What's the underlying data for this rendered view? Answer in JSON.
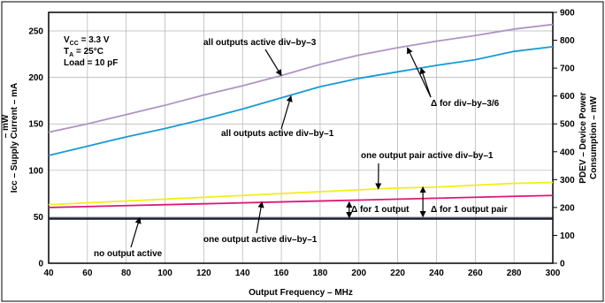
{
  "chart_data": {
    "type": "line",
    "xlabel": "Output Frequency – MHz",
    "ylabel": "Icc – Supply Current – mA",
    "ylabel_fragment": "– mW",
    "y2label_line1": "PDEV – Device Power",
    "y2label_line2": "Consumption – mW",
    "xlim": [
      40,
      300
    ],
    "ylim": [
      0,
      270
    ],
    "y2lim": [
      0,
      900
    ],
    "x_ticks": [
      40,
      60,
      80,
      100,
      120,
      140,
      160,
      180,
      200,
      220,
      240,
      260,
      280,
      300
    ],
    "y_ticks": [
      0,
      50,
      100,
      150,
      200,
      250
    ],
    "y2_ticks": [
      0,
      100,
      200,
      300,
      400,
      500,
      600,
      700,
      800,
      900
    ],
    "grid": true,
    "conditions": {
      "vcc": "V CC = 3.3 V",
      "vcc_parts": [
        "V",
        "CC",
        " = 3.3 V"
      ],
      "ta_parts": [
        "T",
        "A",
        " = 25°C"
      ],
      "load": "Load = 10 pF"
    },
    "series": [
      {
        "key": "div3",
        "color": "#b094c4",
        "points": [
          [
            40,
            141
          ],
          [
            60,
            150
          ],
          [
            80,
            160
          ],
          [
            100,
            170
          ],
          [
            120,
            181
          ],
          [
            140,
            191
          ],
          [
            160,
            202
          ],
          [
            180,
            214
          ],
          [
            200,
            224
          ],
          [
            220,
            232
          ],
          [
            240,
            239
          ],
          [
            260,
            245
          ],
          [
            280,
            252
          ],
          [
            300,
            257
          ]
        ]
      },
      {
        "key": "div1",
        "color": "#1a9ad6",
        "points": [
          [
            40,
            116
          ],
          [
            60,
            126
          ],
          [
            80,
            136
          ],
          [
            100,
            145
          ],
          [
            120,
            155
          ],
          [
            140,
            166
          ],
          [
            160,
            178
          ],
          [
            180,
            190
          ],
          [
            200,
            199
          ],
          [
            220,
            206
          ],
          [
            240,
            213
          ],
          [
            260,
            219
          ],
          [
            280,
            228
          ],
          [
            300,
            233
          ]
        ]
      },
      {
        "key": "pair",
        "color": "#f2ee1a",
        "points": [
          [
            40,
            63
          ],
          [
            60,
            65
          ],
          [
            80,
            67
          ],
          [
            100,
            69
          ],
          [
            120,
            71
          ],
          [
            140,
            73
          ],
          [
            160,
            75
          ],
          [
            180,
            77
          ],
          [
            200,
            79
          ],
          [
            220,
            81
          ],
          [
            240,
            82
          ],
          [
            260,
            84
          ],
          [
            280,
            86
          ],
          [
            300,
            87
          ]
        ]
      },
      {
        "key": "single",
        "color": "#e0157a",
        "points": [
          [
            40,
            60
          ],
          [
            80,
            62
          ],
          [
            120,
            64
          ],
          [
            160,
            66
          ],
          [
            200,
            68
          ],
          [
            240,
            70
          ],
          [
            280,
            72
          ],
          [
            300,
            73
          ]
        ]
      },
      {
        "key": "none",
        "color": "#1a1a33",
        "points": [
          [
            40,
            48
          ],
          [
            300,
            48
          ]
        ]
      }
    ],
    "annotations": {
      "div3": "all outputs active div–by–3",
      "div1": "all outputs active div–by–1",
      "delta36": "Δ  for div–by–3/6",
      "pair_active": "one output pair active div–by–1",
      "delta1": "Δ  for 1 output",
      "delta_pair": "Δ  for 1 output pair",
      "single_active": "one output active div–by–1",
      "none_active": "no output active"
    }
  }
}
